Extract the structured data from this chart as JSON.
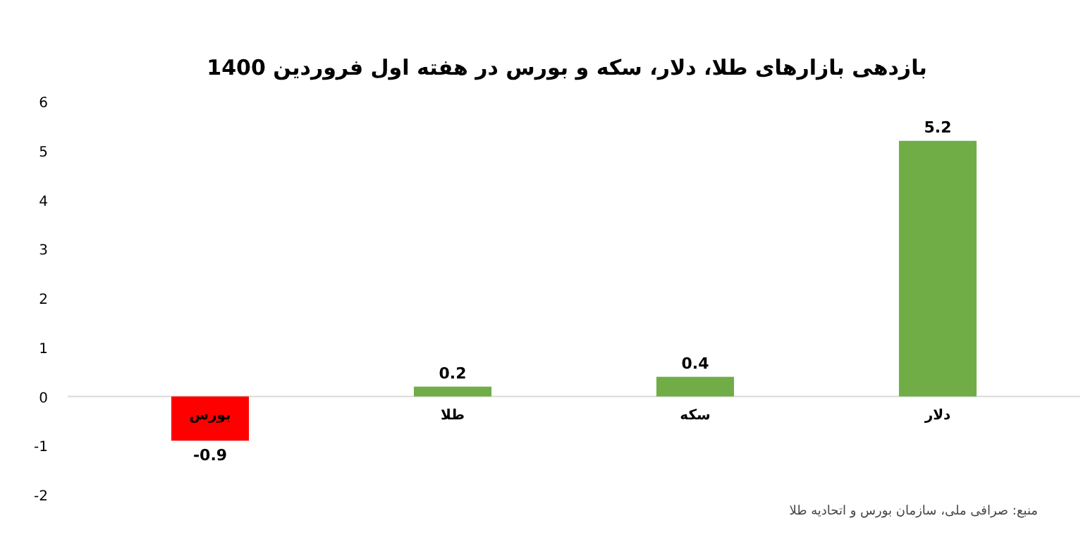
{
  "chart_data": {
    "type": "bar",
    "title": "بازدهی بازارهای طلا، دلار، سکه و بورس در هفته اول فروردین 1400",
    "categories": [
      "بورس",
      "طلا",
      "سکه",
      "دلار"
    ],
    "values": [
      -0.9,
      0.2,
      0.4,
      5.2
    ],
    "colors": [
      "#ff0000",
      "#70ad47",
      "#70ad47",
      "#70ad47"
    ],
    "ylim": [
      -2,
      6
    ],
    "yticks": [
      -2,
      -1,
      0,
      1,
      2,
      3,
      4,
      5,
      6
    ],
    "grid": false,
    "data_labels": true,
    "annotations": [
      "منبع: صرافی ملی، سازمان بورس و اتحادیه طلا"
    ]
  }
}
